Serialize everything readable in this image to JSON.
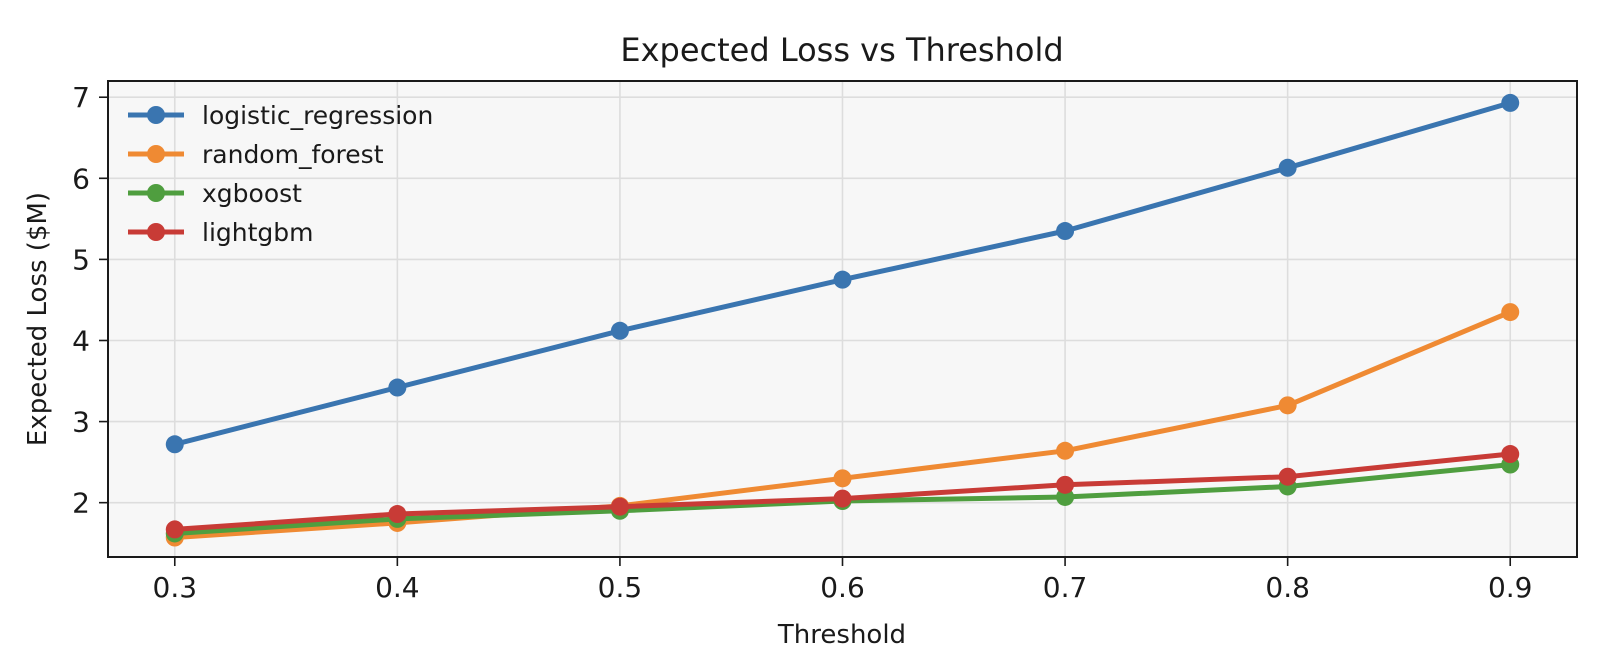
{
  "chart_data": {
    "type": "line",
    "title": "Expected Loss vs Threshold",
    "xlabel": "Threshold",
    "ylabel": "Expected Loss ($M)",
    "x": [
      0.3,
      0.4,
      0.5,
      0.6,
      0.7,
      0.8,
      0.9
    ],
    "x_ticks": [
      "0.3",
      "0.4",
      "0.5",
      "0.6",
      "0.7",
      "0.8",
      "0.9"
    ],
    "y_ticks": [
      "2",
      "3",
      "4",
      "5",
      "6",
      "7"
    ],
    "xlim": [
      0.27,
      0.93
    ],
    "ylim": [
      1.33,
      7.2
    ],
    "grid": true,
    "legend_position": "upper-left",
    "series": [
      {
        "name": "logistic_regression",
        "color": "#3a75b0",
        "values": [
          2.72,
          3.42,
          4.12,
          4.75,
          5.35,
          6.13,
          6.93
        ]
      },
      {
        "name": "random_forest",
        "color": "#ef8a33",
        "values": [
          1.57,
          1.75,
          1.96,
          2.3,
          2.64,
          3.2,
          4.35
        ]
      },
      {
        "name": "xgboost",
        "color": "#4f9e3f",
        "values": [
          1.62,
          1.8,
          1.9,
          2.02,
          2.07,
          2.2,
          2.47
        ]
      },
      {
        "name": "lightgbm",
        "color": "#c83b36",
        "values": [
          1.67,
          1.86,
          1.95,
          2.05,
          2.22,
          2.32,
          2.6
        ]
      }
    ]
  }
}
